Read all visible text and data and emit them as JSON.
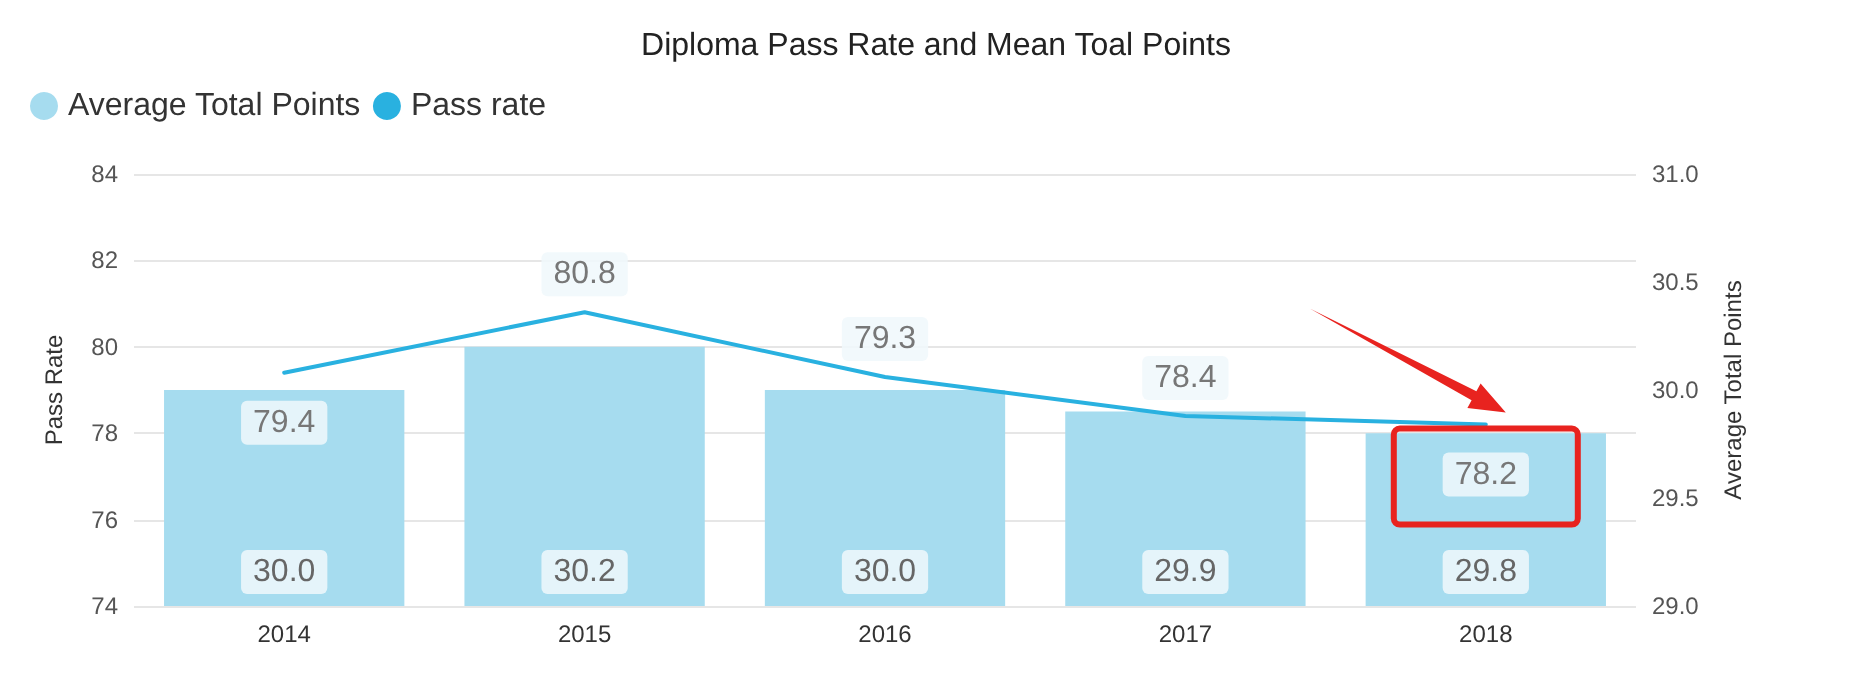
{
  "chart_data": {
    "type": "bar",
    "title": "Diploma Pass Rate and Mean Toal Points",
    "ylabel": "Pass Rate",
    "y2label": "Average Total Points",
    "categories": [
      "2014",
      "2015",
      "2016",
      "2017",
      "2018"
    ],
    "series": [
      {
        "name": "Average Total Points",
        "axis": "y2",
        "color": "#a6dcef",
        "values": [
          30.0,
          30.2,
          30.0,
          29.9,
          29.8
        ],
        "value_labels": [
          "30.0",
          "30.2",
          "30.0",
          "29.9",
          "29.8"
        ]
      },
      {
        "name": "Pass rate",
        "type": "line",
        "axis": "y",
        "color": "#29b1e0",
        "values": [
          79.4,
          80.8,
          79.3,
          78.4,
          78.2
        ],
        "value_labels": [
          "79.4",
          "80.8",
          "79.3",
          "78.4",
          "78.2"
        ]
      }
    ],
    "ylim": [
      74,
      84
    ],
    "yticks": [
      74,
      76,
      78,
      80,
      82,
      84
    ],
    "y2lim": [
      29,
      31
    ],
    "y2ticks": [
      {
        "value": 29,
        "label": "29.0"
      },
      {
        "value": 29.5,
        "label": "29.5"
      },
      {
        "value": 30,
        "label": "30.0"
      },
      {
        "value": 30.5,
        "label": "30.5"
      },
      {
        "value": 31,
        "label": "31.0"
      }
    ],
    "grid": "y",
    "legend": "top left",
    "marker": "none"
  }
}
